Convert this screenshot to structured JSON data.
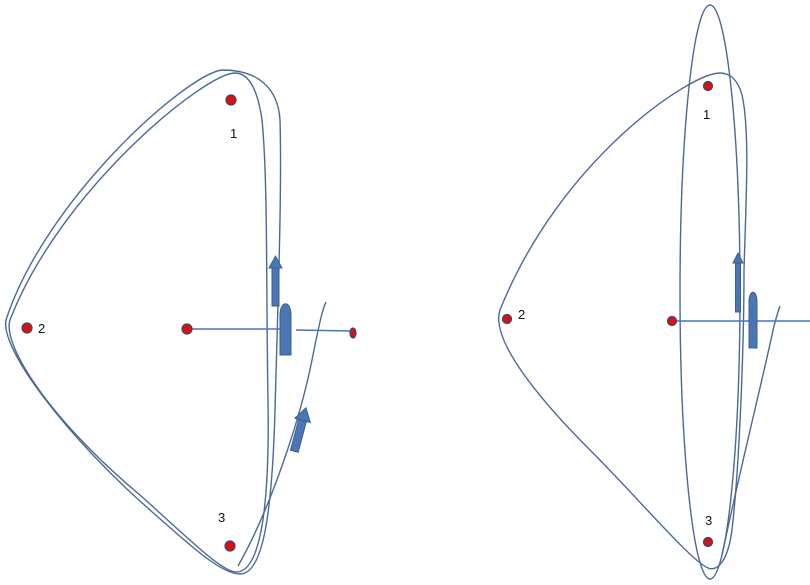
{
  "left_panel": {
    "points": [
      {
        "label": "1"
      },
      {
        "label": "2"
      },
      {
        "label": "3"
      }
    ]
  },
  "right_panel": {
    "points": [
      {
        "label": "1"
      },
      {
        "label": "2"
      },
      {
        "label": "3"
      }
    ]
  },
  "colors": {
    "curve": "#4a6a96",
    "line": "#4a77b4",
    "point": "#e10e0e",
    "arrow": "#4a77b4"
  }
}
